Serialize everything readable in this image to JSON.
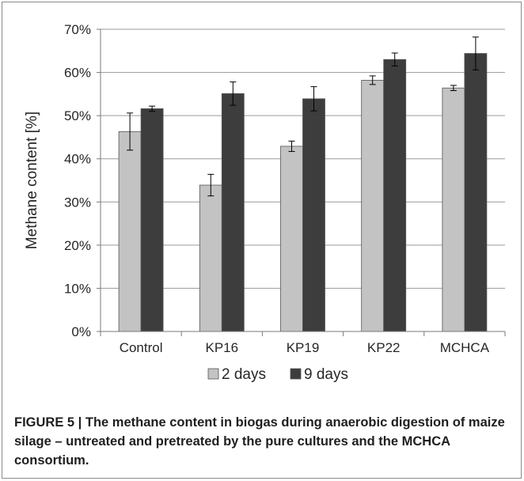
{
  "chart_data": {
    "type": "bar",
    "ylabel": "Methane content [%]",
    "xlabel": "",
    "ylim": [
      0,
      70
    ],
    "ytick_step": 10,
    "ytick_suffix": "%",
    "grid": true,
    "legend_position": "bottom",
    "categories": [
      "Control",
      "KP16",
      "KP19",
      "KP22",
      "MCHCA"
    ],
    "series": [
      {
        "name": "2 days",
        "color": "#c3c3c3",
        "values": [
          46.3,
          33.9,
          42.9,
          58.2,
          56.4
        ],
        "errors": [
          4.3,
          2.5,
          1.2,
          1.0,
          0.6
        ]
      },
      {
        "name": "9 days",
        "color": "#3d3d3d",
        "values": [
          51.6,
          55.1,
          53.9,
          63.0,
          64.4
        ],
        "errors": [
          0.6,
          2.7,
          2.8,
          1.5,
          3.8
        ]
      }
    ]
  },
  "caption": {
    "label": "FIGURE 5 |",
    "text": "The methane content in biogas during anaerobic digestion of maize silage – untreated and pretreated by the pure cultures and the MCHCA consortium."
  }
}
